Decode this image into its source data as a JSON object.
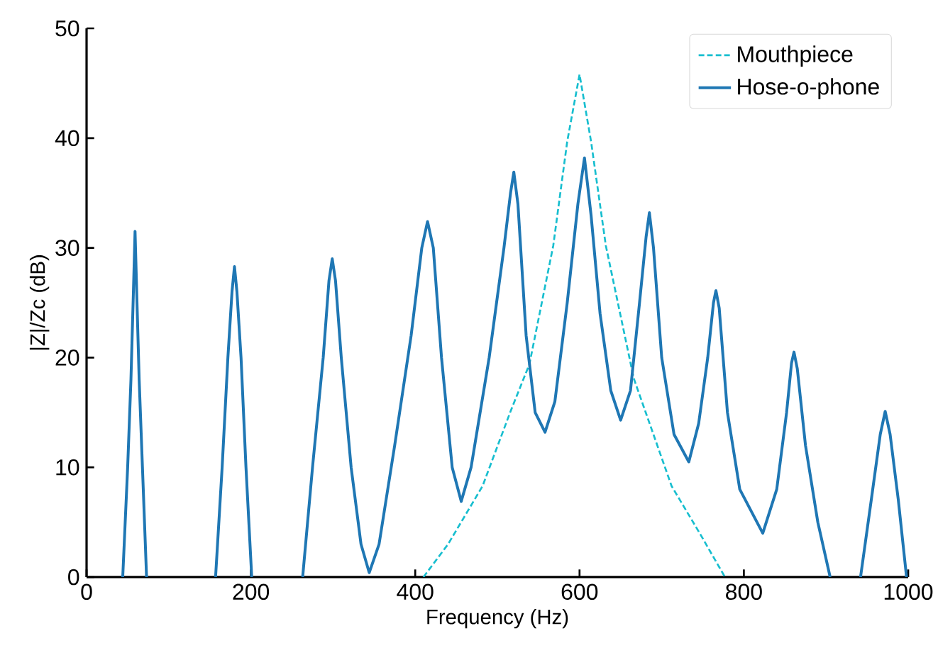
{
  "chart_data": {
    "type": "line",
    "xlabel": "Frequency (Hz)",
    "ylabel": "|Z|/Zc (dB)",
    "xlim": [
      0,
      1000
    ],
    "ylim": [
      0,
      50
    ],
    "xticks": [
      0,
      200,
      400,
      600,
      800,
      1000
    ],
    "yticks": [
      0,
      10,
      20,
      30,
      40,
      50
    ],
    "legend": "top right",
    "series": [
      {
        "name": "Mouthpiece",
        "color": "#17becf",
        "line_style": "dashed",
        "x": [
          410,
          440,
          482,
          516,
          539,
          568,
          585,
          600,
          614,
          632,
          666,
          712,
          747,
          777
        ],
        "values": [
          0,
          3,
          8.3,
          15.1,
          19.4,
          30.2,
          39.7,
          45.8,
          39.7,
          30.2,
          18.1,
          8.3,
          3.9,
          0
        ]
      },
      {
        "name": "Hose-o-phone",
        "color": "#1f77b4",
        "line_style": "solid",
        "x": [
          44,
          50,
          54,
          57,
          59,
          61,
          64,
          68,
          73,
          115,
          157,
          165,
          172,
          177,
          180,
          183,
          188,
          194,
          201,
          230,
          263,
          275,
          288,
          295,
          299,
          303,
          310,
          322,
          334,
          344,
          356,
          375,
          395,
          408,
          415,
          422,
          432,
          445,
          456,
          468,
          490,
          508,
          516,
          520,
          525,
          535,
          546,
          558,
          570,
          585,
          598,
          606,
          614,
          625,
          638,
          650,
          662,
          673,
          681,
          685,
          690,
          700,
          715,
          733,
          745,
          756,
          763,
          766,
          770,
          780,
          795,
          823,
          840,
          852,
          858,
          861,
          865,
          875,
          890,
          905,
          925,
          942,
          955,
          966,
          972,
          978,
          988,
          998
        ],
        "values": [
          0,
          10,
          18,
          26,
          31.5,
          26,
          18,
          10,
          0,
          null,
          0,
          10,
          20,
          26,
          28.3,
          26,
          20,
          10,
          0,
          null,
          0,
          10,
          20,
          27,
          29,
          27,
          20,
          10,
          3,
          0.4,
          3,
          12,
          22,
          30,
          32.4,
          30,
          20,
          10,
          6.9,
          10,
          20,
          30,
          35,
          36.9,
          34,
          22,
          15,
          13.2,
          16,
          25,
          34,
          38.2,
          33,
          24,
          17,
          14.3,
          17,
          25,
          31,
          33.2,
          30,
          20,
          13,
          10.5,
          14,
          20,
          25,
          26.1,
          24.5,
          15,
          8,
          4,
          8,
          15,
          19.5,
          20.5,
          19,
          12,
          5,
          0,
          null,
          0,
          7,
          13,
          15.1,
          13,
          7,
          0
        ]
      }
    ]
  }
}
